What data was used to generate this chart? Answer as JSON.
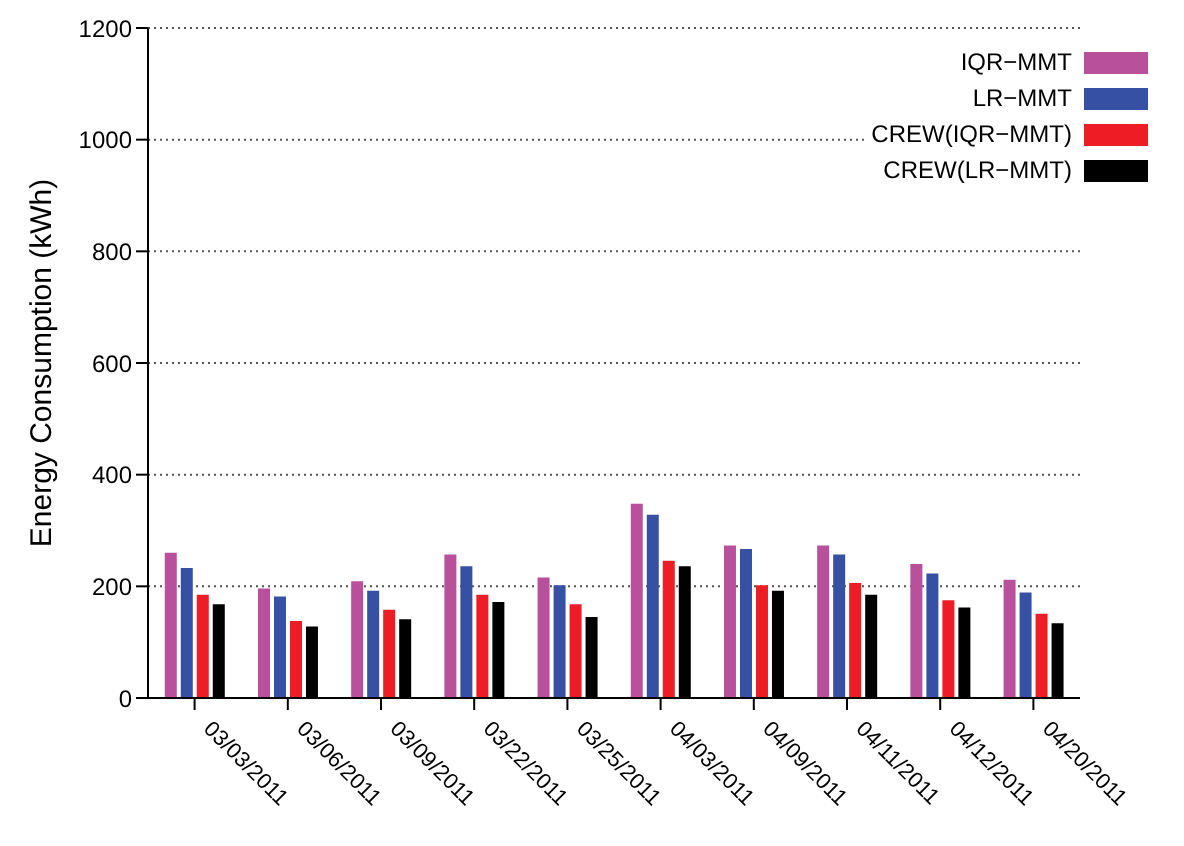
{
  "chart_data": {
    "type": "bar",
    "ylabel": "Energy Consumption (kWh)",
    "categories": [
      "03/03/2011",
      "03/06/2011",
      "03/09/2011",
      "03/22/2011",
      "03/25/2011",
      "04/03/2011",
      "04/09/2011",
      "04/11/2011",
      "04/12/2011",
      "04/20/2011"
    ],
    "series": [
      {
        "name": "IQR−MMT",
        "color": "#b8509c",
        "values": [
          260,
          196,
          209,
          257,
          216,
          348,
          273,
          273,
          240,
          212
        ]
      },
      {
        "name": "LR−MMT",
        "color": "#3651a3",
        "values": [
          233,
          182,
          192,
          236,
          202,
          328,
          267,
          257,
          223,
          189
        ]
      },
      {
        "name": "CREW(IQR−MMT)",
        "color": "#ee1c24",
        "values": [
          185,
          138,
          158,
          185,
          168,
          246,
          202,
          206,
          175,
          151
        ]
      },
      {
        "name": "CREW(LR−MMT)",
        "color": "#000000",
        "values": [
          168,
          128,
          141,
          172,
          145,
          236,
          192,
          185,
          162,
          134
        ]
      }
    ],
    "ylim": [
      0,
      1200
    ],
    "yticks": [
      0,
      200,
      400,
      600,
      800,
      1000,
      1200
    ],
    "grid": "y",
    "legend": "top right"
  }
}
